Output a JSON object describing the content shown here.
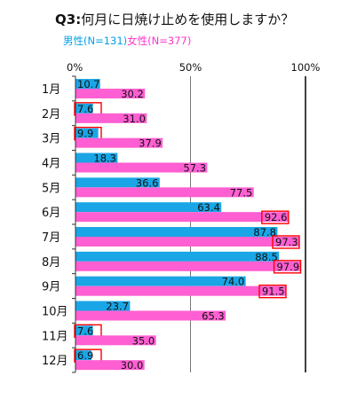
{
  "chart_data": {
    "type": "bar",
    "orientation": "horizontal",
    "title_prefix": "Q3:",
    "title": "何月に日焼け止めを使用しますか？",
    "categories": [
      "1月",
      "2月",
      "3月",
      "4月",
      "5月",
      "6月",
      "7月",
      "8月",
      "9月",
      "10月",
      "11月",
      "12月"
    ],
    "series": [
      {
        "name": "男性(N=131)",
        "color": "#1aa6e6",
        "values": [
          10.7,
          7.6,
          9.9,
          18.3,
          36.6,
          63.4,
          87.8,
          88.5,
          74.0,
          23.7,
          7.6,
          6.9
        ],
        "labels": [
          "10.7",
          "7.6",
          "9.9",
          "18.3",
          "36.6",
          "63.4",
          "87.8",
          "88.5",
          "74.0",
          "23.7",
          "7.6",
          "6.9"
        ]
      },
      {
        "name": "女性(N=377)",
        "color": "#ff5fd2",
        "values": [
          30.2,
          31.0,
          37.9,
          57.3,
          77.5,
          92.6,
          97.3,
          97.9,
          91.5,
          65.3,
          35.0,
          30.0
        ],
        "labels": [
          "30.2",
          "31.0",
          "37.9",
          "57.3",
          "77.5",
          "92.6",
          "97.3",
          "97.9",
          "91.5",
          "65.3",
          "35.0",
          "30.0"
        ]
      }
    ],
    "xlim": [
      0,
      100
    ],
    "ticks": [
      "0%",
      "50%",
      "100%"
    ],
    "highlight_color": "#ff0000",
    "highlighted": [
      {
        "series": 0,
        "index": 1
      },
      {
        "series": 0,
        "index": 2
      },
      {
        "series": 1,
        "index": 5
      },
      {
        "series": 1,
        "index": 6
      },
      {
        "series": 1,
        "index": 7
      },
      {
        "series": 1,
        "index": 8
      },
      {
        "series": 0,
        "index": 10
      },
      {
        "series": 0,
        "index": 11
      }
    ]
  }
}
